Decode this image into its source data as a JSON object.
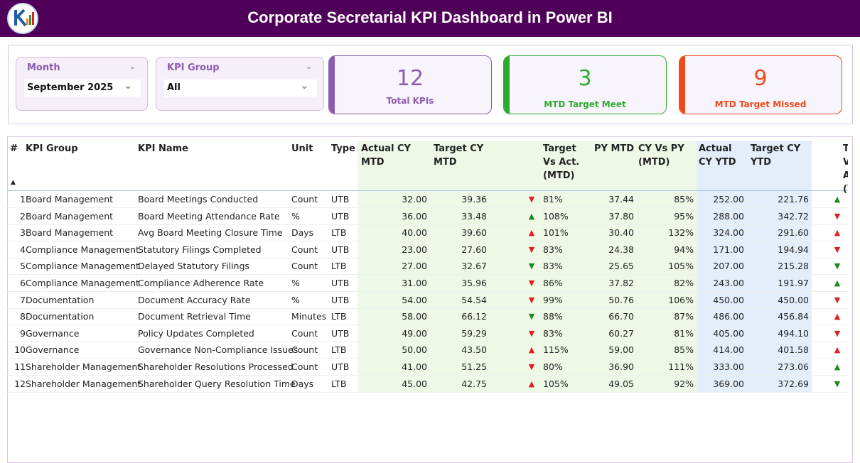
{
  "header": {
    "title": "Corporate Secretarial KPI Dashboard in Power BI"
  },
  "filters": [
    {
      "label": "Month",
      "value": "September 2025"
    },
    {
      "label": "KPI Group",
      "value": "All"
    }
  ],
  "cards": [
    {
      "value": "12",
      "label": "Total KPIs",
      "color": "#8a5cb0"
    },
    {
      "value": "3",
      "label": "MTD Target Meet",
      "color": "#2eaa2e"
    },
    {
      "value": "9",
      "label": "MTD Target Missed",
      "color": "#f04a1c"
    }
  ],
  "table": {
    "columns": {
      "no": "#",
      "group": "KPI Group",
      "name": "KPI Name",
      "unit": "Unit",
      "type": "Type",
      "actual_mtd": "Actual CY MTD",
      "target_mtd": "Target CY MTD",
      "target_vs_act_mtd": "Target Vs Act. (MTD)",
      "py_mtd": "PY MTD",
      "cy_vs_py_mtd": "CY Vs PY (MTD)",
      "actual_ytd": "Actual CY YTD",
      "target_ytd": "Target CY YTD",
      "target_vs_act_ytd": "Target Vs Act. (YTD)"
    },
    "rows": [
      {
        "no": "1",
        "group": "Board Management",
        "name": "Board Meetings Conducted",
        "unit": "Count",
        "type": "UTB",
        "actual_mtd": "32.00",
        "target_mtd": "39.36",
        "mtd_arrow": "▼",
        "mtd_arrow_color": "#e02020",
        "target_vs_act_mtd": "81%",
        "py_mtd": "37.44",
        "cy_vs_py_mtd": "85%",
        "actual_ytd": "252.00",
        "target_ytd": "221.76",
        "ytd_arrow": "▲",
        "ytd_arrow_color": "#1e8a1e"
      },
      {
        "no": "2",
        "group": "Board Management",
        "name": "Board Meeting Attendance Rate",
        "unit": "%",
        "type": "UTB",
        "actual_mtd": "36.00",
        "target_mtd": "33.48",
        "mtd_arrow": "▲",
        "mtd_arrow_color": "#1e8a1e",
        "target_vs_act_mtd": "108%",
        "py_mtd": "37.80",
        "cy_vs_py_mtd": "95%",
        "actual_ytd": "288.00",
        "target_ytd": "342.72",
        "ytd_arrow": "▼",
        "ytd_arrow_color": "#e02020"
      },
      {
        "no": "3",
        "group": "Board Management",
        "name": "Avg Board Meeting Closure Time",
        "unit": "Days",
        "type": "LTB",
        "actual_mtd": "40.00",
        "target_mtd": "39.60",
        "mtd_arrow": "▲",
        "mtd_arrow_color": "#e02020",
        "target_vs_act_mtd": "101%",
        "py_mtd": "30.40",
        "cy_vs_py_mtd": "132%",
        "actual_ytd": "324.00",
        "target_ytd": "291.60",
        "ytd_arrow": "▲",
        "ytd_arrow_color": "#e02020"
      },
      {
        "no": "4",
        "group": "Compliance Management",
        "name": "Statutory Filings Completed",
        "unit": "Count",
        "type": "UTB",
        "actual_mtd": "23.00",
        "target_mtd": "27.60",
        "mtd_arrow": "▼",
        "mtd_arrow_color": "#e02020",
        "target_vs_act_mtd": "83%",
        "py_mtd": "24.38",
        "cy_vs_py_mtd": "94%",
        "actual_ytd": "171.00",
        "target_ytd": "194.94",
        "ytd_arrow": "▼",
        "ytd_arrow_color": "#e02020"
      },
      {
        "no": "5",
        "group": "Compliance Management",
        "name": "Delayed Statutory Filings",
        "unit": "Count",
        "type": "LTB",
        "actual_mtd": "27.00",
        "target_mtd": "32.67",
        "mtd_arrow": "▼",
        "mtd_arrow_color": "#1e8a1e",
        "target_vs_act_mtd": "83%",
        "py_mtd": "25.65",
        "cy_vs_py_mtd": "105%",
        "actual_ytd": "207.00",
        "target_ytd": "215.28",
        "ytd_arrow": "▼",
        "ytd_arrow_color": "#1e8a1e"
      },
      {
        "no": "6",
        "group": "Compliance Management",
        "name": "Compliance Adherence Rate",
        "unit": "%",
        "type": "UTB",
        "actual_mtd": "31.00",
        "target_mtd": "35.96",
        "mtd_arrow": "▼",
        "mtd_arrow_color": "#e02020",
        "target_vs_act_mtd": "86%",
        "py_mtd": "37.82",
        "cy_vs_py_mtd": "82%",
        "actual_ytd": "243.00",
        "target_ytd": "191.97",
        "ytd_arrow": "▲",
        "ytd_arrow_color": "#1e8a1e"
      },
      {
        "no": "7",
        "group": "Documentation",
        "name": "Document Accuracy Rate",
        "unit": "%",
        "type": "UTB",
        "actual_mtd": "54.00",
        "target_mtd": "54.54",
        "mtd_arrow": "▼",
        "mtd_arrow_color": "#e02020",
        "target_vs_act_mtd": "99%",
        "py_mtd": "50.76",
        "cy_vs_py_mtd": "106%",
        "actual_ytd": "450.00",
        "target_ytd": "450.00",
        "ytd_arrow": "▼",
        "ytd_arrow_color": "#e02020"
      },
      {
        "no": "8",
        "group": "Documentation",
        "name": "Document Retrieval Time",
        "unit": "Minutes",
        "type": "LTB",
        "actual_mtd": "58.00",
        "target_mtd": "66.12",
        "mtd_arrow": "▼",
        "mtd_arrow_color": "#1e8a1e",
        "target_vs_act_mtd": "88%",
        "py_mtd": "66.70",
        "cy_vs_py_mtd": "87%",
        "actual_ytd": "486.00",
        "target_ytd": "456.84",
        "ytd_arrow": "▲",
        "ytd_arrow_color": "#e02020"
      },
      {
        "no": "9",
        "group": "Governance",
        "name": "Policy Updates Completed",
        "unit": "Count",
        "type": "UTB",
        "actual_mtd": "49.00",
        "target_mtd": "59.29",
        "mtd_arrow": "▼",
        "mtd_arrow_color": "#e02020",
        "target_vs_act_mtd": "83%",
        "py_mtd": "60.27",
        "cy_vs_py_mtd": "81%",
        "actual_ytd": "405.00",
        "target_ytd": "494.10",
        "ytd_arrow": "▼",
        "ytd_arrow_color": "#e02020"
      },
      {
        "no": "10",
        "group": "Governance",
        "name": "Governance Non-Compliance Issues",
        "unit": "Count",
        "type": "LTB",
        "actual_mtd": "50.00",
        "target_mtd": "43.50",
        "mtd_arrow": "▲",
        "mtd_arrow_color": "#e02020",
        "target_vs_act_mtd": "115%",
        "py_mtd": "59.00",
        "cy_vs_py_mtd": "85%",
        "actual_ytd": "414.00",
        "target_ytd": "401.58",
        "ytd_arrow": "▲",
        "ytd_arrow_color": "#e02020"
      },
      {
        "no": "11",
        "group": "Shareholder Management",
        "name": "Shareholder Resolutions Processed",
        "unit": "Count",
        "type": "UTB",
        "actual_mtd": "41.00",
        "target_mtd": "51.25",
        "mtd_arrow": "▼",
        "mtd_arrow_color": "#e02020",
        "target_vs_act_mtd": "80%",
        "py_mtd": "36.90",
        "cy_vs_py_mtd": "111%",
        "actual_ytd": "333.00",
        "target_ytd": "273.06",
        "ytd_arrow": "▲",
        "ytd_arrow_color": "#1e8a1e"
      },
      {
        "no": "12",
        "group": "Shareholder Management",
        "name": "Shareholder Query Resolution Time",
        "unit": "Days",
        "type": "LTB",
        "actual_mtd": "45.00",
        "target_mtd": "42.75",
        "mtd_arrow": "▲",
        "mtd_arrow_color": "#e02020",
        "target_vs_act_mtd": "105%",
        "py_mtd": "49.05",
        "cy_vs_py_mtd": "92%",
        "actual_ytd": "369.00",
        "target_ytd": "372.69",
        "ytd_arrow": "▼",
        "ytd_arrow_color": "#1e8a1e"
      }
    ]
  }
}
